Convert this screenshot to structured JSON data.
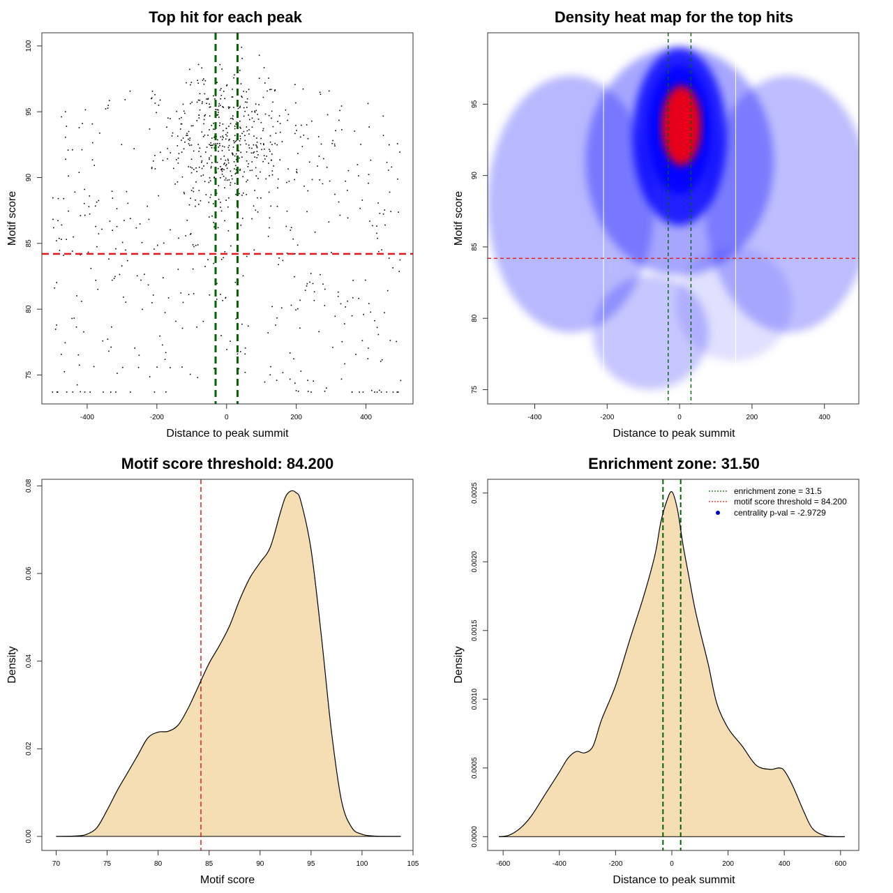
{
  "colors": {
    "threshold_line": "#e31a1c",
    "zone_line": "#006400",
    "density_fill": "#f5deb3",
    "heat_low": "#ffffff",
    "heat_mid": "#0000ff",
    "heat_high": "#ff0000",
    "point": "#000000",
    "legend_dot": "#0000cd"
  },
  "chart_data": [
    {
      "id": "scatter",
      "type": "scatter",
      "title": "Top hit for each peak",
      "xlabel": "Distance to peak summit",
      "ylabel": "Motif score",
      "xlim": [
        -530,
        535
      ],
      "ylim": [
        72.8,
        101
      ],
      "xticks": [
        -400,
        -200,
        0,
        200,
        400
      ],
      "yticks": [
        75,
        80,
        85,
        90,
        95,
        100
      ],
      "grid": false,
      "vlines": [
        -31.5,
        31.5
      ],
      "hline": 84.2,
      "points": {
        "n": 900,
        "center_x": 0,
        "x_range": [
          -500,
          500
        ],
        "score_range": [
          73.7,
          99.9
        ],
        "dense_region_x": [
          -150,
          150
        ],
        "dense_region_score": [
          88,
          97
        ]
      }
    },
    {
      "id": "heatmap",
      "type": "heatmap",
      "title": "Density heat map for the top hits",
      "xlabel": "Distance to peak summit",
      "ylabel": "Motif score",
      "xlim": [
        -530,
        495
      ],
      "ylim": [
        74,
        100
      ],
      "xticks": [
        -400,
        -200,
        0,
        200,
        400
      ],
      "yticks": [
        75,
        80,
        85,
        90,
        95
      ],
      "grid": false,
      "vlines": [
        -31.5,
        31.5
      ],
      "hline": 84.2,
      "white_vlines": [
        -210,
        155
      ],
      "peak": {
        "x": 5,
        "y": 93.5
      }
    },
    {
      "id": "score_density",
      "type": "area",
      "title": "Motif score threshold: 84.200",
      "xlabel": "Motif score",
      "ylabel": "Density",
      "xlim": [
        68.6,
        105
      ],
      "ylim": [
        -0.0032,
        0.0815
      ],
      "xticks": [
        70,
        75,
        80,
        85,
        90,
        95,
        100,
        105
      ],
      "yticks": [
        0.0,
        0.02,
        0.04,
        0.06,
        0.08
      ],
      "ytick_labels": [
        "0.00",
        "0.02",
        "0.04",
        "0.06",
        "0.08"
      ],
      "grid": false,
      "vline": 84.2,
      "x": [
        70,
        72,
        73,
        74,
        75,
        76,
        77,
        78,
        79,
        80,
        81,
        82,
        83,
        84,
        85,
        86,
        87,
        88,
        89,
        90,
        91,
        92,
        92.5,
        93,
        93.5,
        94,
        95,
        96,
        97,
        98,
        99,
        100,
        101,
        102,
        103,
        103.8
      ],
      "y": [
        0.0,
        0.0001,
        0.0005,
        0.002,
        0.006,
        0.0105,
        0.0145,
        0.0185,
        0.0225,
        0.0238,
        0.024,
        0.0255,
        0.0295,
        0.0345,
        0.0395,
        0.0435,
        0.048,
        0.054,
        0.059,
        0.0625,
        0.066,
        0.074,
        0.0775,
        0.0788,
        0.0785,
        0.0765,
        0.0655,
        0.046,
        0.024,
        0.008,
        0.002,
        0.0005,
        0.0001,
        2e-05,
        0.0,
        0.0
      ]
    },
    {
      "id": "distance_density",
      "type": "area",
      "title": "Enrichment zone: 31.50",
      "xlabel": "Distance to peak summit",
      "ylabel": "Density",
      "xlim": [
        -655,
        665
      ],
      "ylim": [
        -0.0001,
        0.0026
      ],
      "xticks": [
        -600,
        -400,
        -200,
        0,
        200,
        400,
        600
      ],
      "yticks": [
        0,
        0.0005,
        0.001,
        0.0015,
        0.002,
        0.0025
      ],
      "ytick_labels": [
        "0.0000",
        "0.0005",
        "0.0010",
        "0.0015",
        "0.0020",
        "0.0025"
      ],
      "grid": false,
      "vlines": [
        -31.5,
        31.5
      ],
      "x": [
        -615,
        -580,
        -540,
        -500,
        -450,
        -400,
        -370,
        -340,
        -310,
        -280,
        -250,
        -200,
        -150,
        -100,
        -60,
        -40,
        -20,
        0,
        20,
        40,
        60,
        80,
        100,
        130,
        160,
        200,
        250,
        300,
        350,
        380,
        400,
        430,
        470,
        500,
        540,
        580,
        615
      ],
      "y": [
        0.0,
        1e-05,
        6e-05,
        0.00015,
        0.00031,
        0.00047,
        0.00057,
        0.00062,
        0.00061,
        0.00066,
        0.00085,
        0.0011,
        0.00143,
        0.00175,
        0.00205,
        0.00228,
        0.00243,
        0.00251,
        0.00238,
        0.00212,
        0.0019,
        0.00168,
        0.0015,
        0.00125,
        0.00097,
        0.00079,
        0.00066,
        0.00052,
        0.00049,
        0.0005,
        0.00048,
        0.00037,
        0.00018,
        6e-05,
        1e-05,
        0.0,
        0.0
      ]
    }
  ],
  "legend": {
    "items": [
      {
        "label": "enrichment zone = 31.5",
        "style": "dotted",
        "color": "#006400"
      },
      {
        "label": "motif score threshold = 84.200",
        "style": "dotted",
        "color": "#e31a1c"
      },
      {
        "label": "centrality p-val = -2.9729",
        "style": "dot",
        "color": "#0000cd"
      }
    ]
  }
}
